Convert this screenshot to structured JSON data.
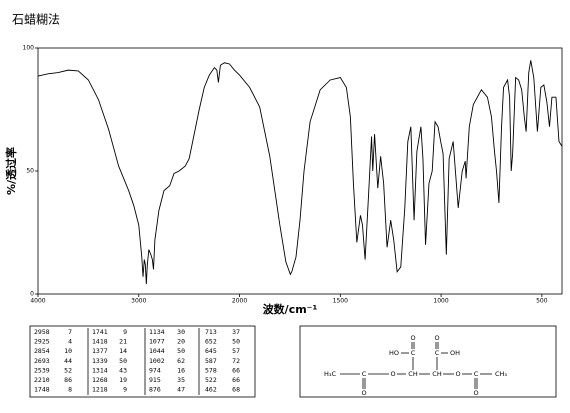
{
  "chart_data": {
    "type": "line",
    "title": "石蜡糊法",
    "xlabel": "波数/cm⁻¹",
    "ylabel": "%/透过率",
    "xlim": [
      4000,
      400
    ],
    "x_scale_break": 2000,
    "ylim": [
      0,
      100
    ],
    "xticks": [
      4000,
      3000,
      2000,
      1500,
      1000,
      500
    ],
    "yticks": [
      0,
      50,
      100
    ],
    "color": "#000000",
    "x": [
      4000,
      3900,
      3800,
      3700,
      3600,
      3500,
      3400,
      3300,
      3200,
      3100,
      3050,
      3000,
      2970,
      2958,
      2945,
      2935,
      2925,
      2915,
      2900,
      2880,
      2865,
      2854,
      2840,
      2800,
      2750,
      2693,
      2650,
      2600,
      2539,
      2500,
      2450,
      2400,
      2350,
      2300,
      2250,
      2225,
      2210,
      2190,
      2150,
      2100,
      2050,
      2000,
      1950,
      1900,
      1850,
      1800,
      1770,
      1748,
      1741,
      1720,
      1700,
      1680,
      1650,
      1600,
      1550,
      1500,
      1470,
      1450,
      1435,
      1418,
      1400,
      1390,
      1377,
      1360,
      1345,
      1339,
      1330,
      1314,
      1300,
      1285,
      1268,
      1250,
      1235,
      1218,
      1200,
      1180,
      1165,
      1150,
      1134,
      1120,
      1100,
      1090,
      1077,
      1060,
      1044,
      1030,
      1015,
      1002,
      990,
      974,
      960,
      940,
      915,
      895,
      880,
      876,
      860,
      840,
      800,
      770,
      750,
      735,
      725,
      713,
      700,
      690,
      670,
      660,
      652,
      645,
      630,
      615,
      600,
      587,
      578,
      565,
      555,
      540,
      522,
      505,
      490,
      475,
      462,
      450,
      430,
      415,
      400
    ],
    "values": [
      88.6,
      89.5,
      90,
      91,
      90.7,
      87,
      79,
      67,
      52,
      42,
      36,
      28,
      15,
      7,
      14,
      12,
      4,
      12,
      18,
      16,
      14,
      10,
      22,
      34,
      42,
      44,
      49,
      50,
      52,
      55,
      65,
      75,
      84,
      89,
      92,
      91,
      86,
      93,
      94,
      93.5,
      91,
      89,
      84,
      76,
      56,
      28,
      13,
      8,
      9,
      15,
      30,
      50,
      70,
      83,
      87,
      88,
      84,
      72,
      45,
      21,
      32,
      28,
      14,
      40,
      64,
      50,
      65,
      43,
      56,
      45,
      19,
      30,
      22,
      9,
      11,
      35,
      62,
      68,
      30,
      58,
      68,
      55,
      20,
      45,
      50,
      70,
      68,
      62,
      57,
      16,
      55,
      62,
      35,
      50,
      54,
      47,
      68,
      77,
      83,
      80,
      72,
      58,
      50,
      37,
      68,
      84,
      87,
      80,
      50,
      57,
      88,
      87,
      83,
      72,
      66,
      90,
      95,
      88,
      66,
      84,
      85,
      78,
      68,
      80,
      80,
      62,
      60
    ]
  },
  "peak_table": {
    "groups": [
      [
        [
          2958,
          7
        ],
        [
          2925,
          4
        ],
        [
          2854,
          10
        ],
        [
          2693,
          44
        ],
        [
          2539,
          52
        ],
        [
          2210,
          86
        ],
        [
          1748,
          8
        ]
      ],
      [
        [
          1741,
          9
        ],
        [
          1418,
          21
        ],
        [
          1377,
          14
        ],
        [
          1339,
          50
        ],
        [
          1314,
          43
        ],
        [
          1268,
          19
        ],
        [
          1218,
          9
        ]
      ],
      [
        [
          1134,
          30
        ],
        [
          1077,
          20
        ],
        [
          1044,
          50
        ],
        [
          1002,
          62
        ],
        [
          974,
          16
        ],
        [
          915,
          35
        ],
        [
          876,
          47
        ]
      ],
      [
        [
          713,
          37
        ],
        [
          652,
          50
        ],
        [
          645,
          57
        ],
        [
          587,
          72
        ],
        [
          578,
          66
        ],
        [
          522,
          66
        ],
        [
          462,
          68
        ]
      ]
    ]
  },
  "structure": {
    "atoms": [
      "O",
      "O",
      "HO",
      "C",
      "C",
      "OH",
      "H₃C",
      "C",
      "O",
      "CH",
      "CH",
      "O",
      "C",
      "CH₃",
      "O",
      "O"
    ]
  }
}
